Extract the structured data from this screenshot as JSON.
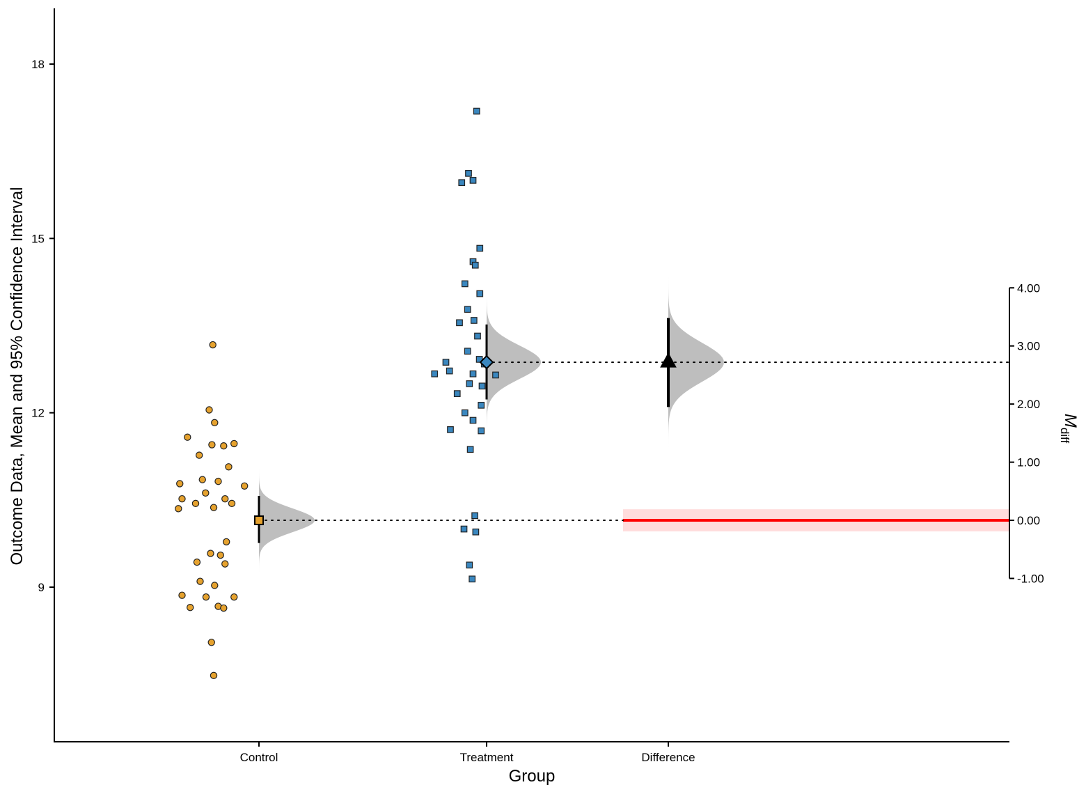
{
  "chart_data": {
    "type": "scatter",
    "xlabel": "Group",
    "ylabel": "Outcome Data, Mean and 95% Confidence Interval",
    "y2label_main": "M",
    "y2label_sub": "diff",
    "categories": [
      "Control",
      "Treatment",
      "Difference"
    ],
    "ylim": [
      6.7,
      19.3
    ],
    "yticks": [
      9,
      12,
      15,
      18
    ],
    "y2lim": [
      -1.0,
      4.0
    ],
    "y2ticks": [
      "4.00",
      "3.00",
      "2.00",
      "1.00",
      "0.00",
      "-1.00"
    ],
    "y2tick_values": [
      4,
      3,
      2,
      1,
      0,
      -1
    ],
    "grid": false,
    "colors": {
      "control": "#E6A22E",
      "treatment": "#3A87BF",
      "density": "#BEBEBE",
      "null_line": "#FF0000",
      "null_band": "#FFDCDC"
    },
    "series": [
      {
        "name": "Control",
        "marker": "circle",
        "mean": 10.15,
        "ci": [
          9.76,
          10.57
        ],
        "points": [
          [
            -1.02,
            13.17
          ],
          [
            -1.1,
            12.05
          ],
          [
            -0.98,
            11.83
          ],
          [
            -1.58,
            11.58
          ],
          [
            -1.04,
            11.45
          ],
          [
            -0.78,
            11.43
          ],
          [
            -0.55,
            11.47
          ],
          [
            -1.32,
            11.27
          ],
          [
            -0.67,
            11.07
          ],
          [
            -1.25,
            10.85
          ],
          [
            -0.9,
            10.82
          ],
          [
            -1.75,
            10.78
          ],
          [
            -0.32,
            10.74
          ],
          [
            -1.18,
            10.62
          ],
          [
            -1.7,
            10.52
          ],
          [
            -0.75,
            10.52
          ],
          [
            -1.4,
            10.44
          ],
          [
            -0.6,
            10.44
          ],
          [
            -1.0,
            10.37
          ],
          [
            -1.78,
            10.35
          ],
          [
            -0.72,
            9.78
          ],
          [
            -1.07,
            9.58
          ],
          [
            -0.85,
            9.55
          ],
          [
            -1.37,
            9.43
          ],
          [
            -0.75,
            9.4
          ],
          [
            -1.3,
            9.1
          ],
          [
            -0.98,
            9.03
          ],
          [
            -1.7,
            8.86
          ],
          [
            -1.17,
            8.83
          ],
          [
            -0.55,
            8.83
          ],
          [
            -1.52,
            8.65
          ],
          [
            -0.9,
            8.67
          ],
          [
            -0.78,
            8.64
          ],
          [
            -1.05,
            8.05
          ],
          [
            -1.0,
            7.48
          ]
        ],
        "density_peak": 0.35
      },
      {
        "name": "Treatment",
        "marker": "square",
        "mean": 12.87,
        "ci": [
          12.23,
          13.52
        ],
        "points": [
          [
            -0.22,
            17.19
          ],
          [
            -0.4,
            16.12
          ],
          [
            -0.3,
            16.0
          ],
          [
            -0.55,
            15.96
          ],
          [
            -0.15,
            14.83
          ],
          [
            -0.3,
            14.6
          ],
          [
            -0.25,
            14.54
          ],
          [
            -0.48,
            14.22
          ],
          [
            -0.15,
            14.05
          ],
          [
            -0.42,
            13.78
          ],
          [
            -0.28,
            13.59
          ],
          [
            -0.6,
            13.55
          ],
          [
            -0.2,
            13.32
          ],
          [
            -0.42,
            13.06
          ],
          [
            -0.16,
            12.92
          ],
          [
            -0.9,
            12.87
          ],
          [
            -0.05,
            12.84
          ],
          [
            -0.82,
            12.72
          ],
          [
            -0.3,
            12.67
          ],
          [
            -1.15,
            12.67
          ],
          [
            0.2,
            12.65
          ],
          [
            -0.38,
            12.5
          ],
          [
            -0.1,
            12.46
          ],
          [
            -0.65,
            12.33
          ],
          [
            -0.12,
            12.13
          ],
          [
            -0.48,
            12.0
          ],
          [
            -0.3,
            11.87
          ],
          [
            -0.8,
            11.71
          ],
          [
            -0.12,
            11.69
          ],
          [
            -0.36,
            11.37
          ],
          [
            -0.26,
            10.23
          ],
          [
            -0.5,
            10.0
          ],
          [
            -0.24,
            9.95
          ],
          [
            -0.38,
            9.38
          ],
          [
            -0.32,
            9.14
          ]
        ],
        "density_peak": 0.35
      },
      {
        "name": "Difference",
        "marker": "triangle",
        "mean_diff": 2.72,
        "ci": [
          1.95,
          3.48
        ],
        "density_peak": 0.35
      }
    ]
  }
}
